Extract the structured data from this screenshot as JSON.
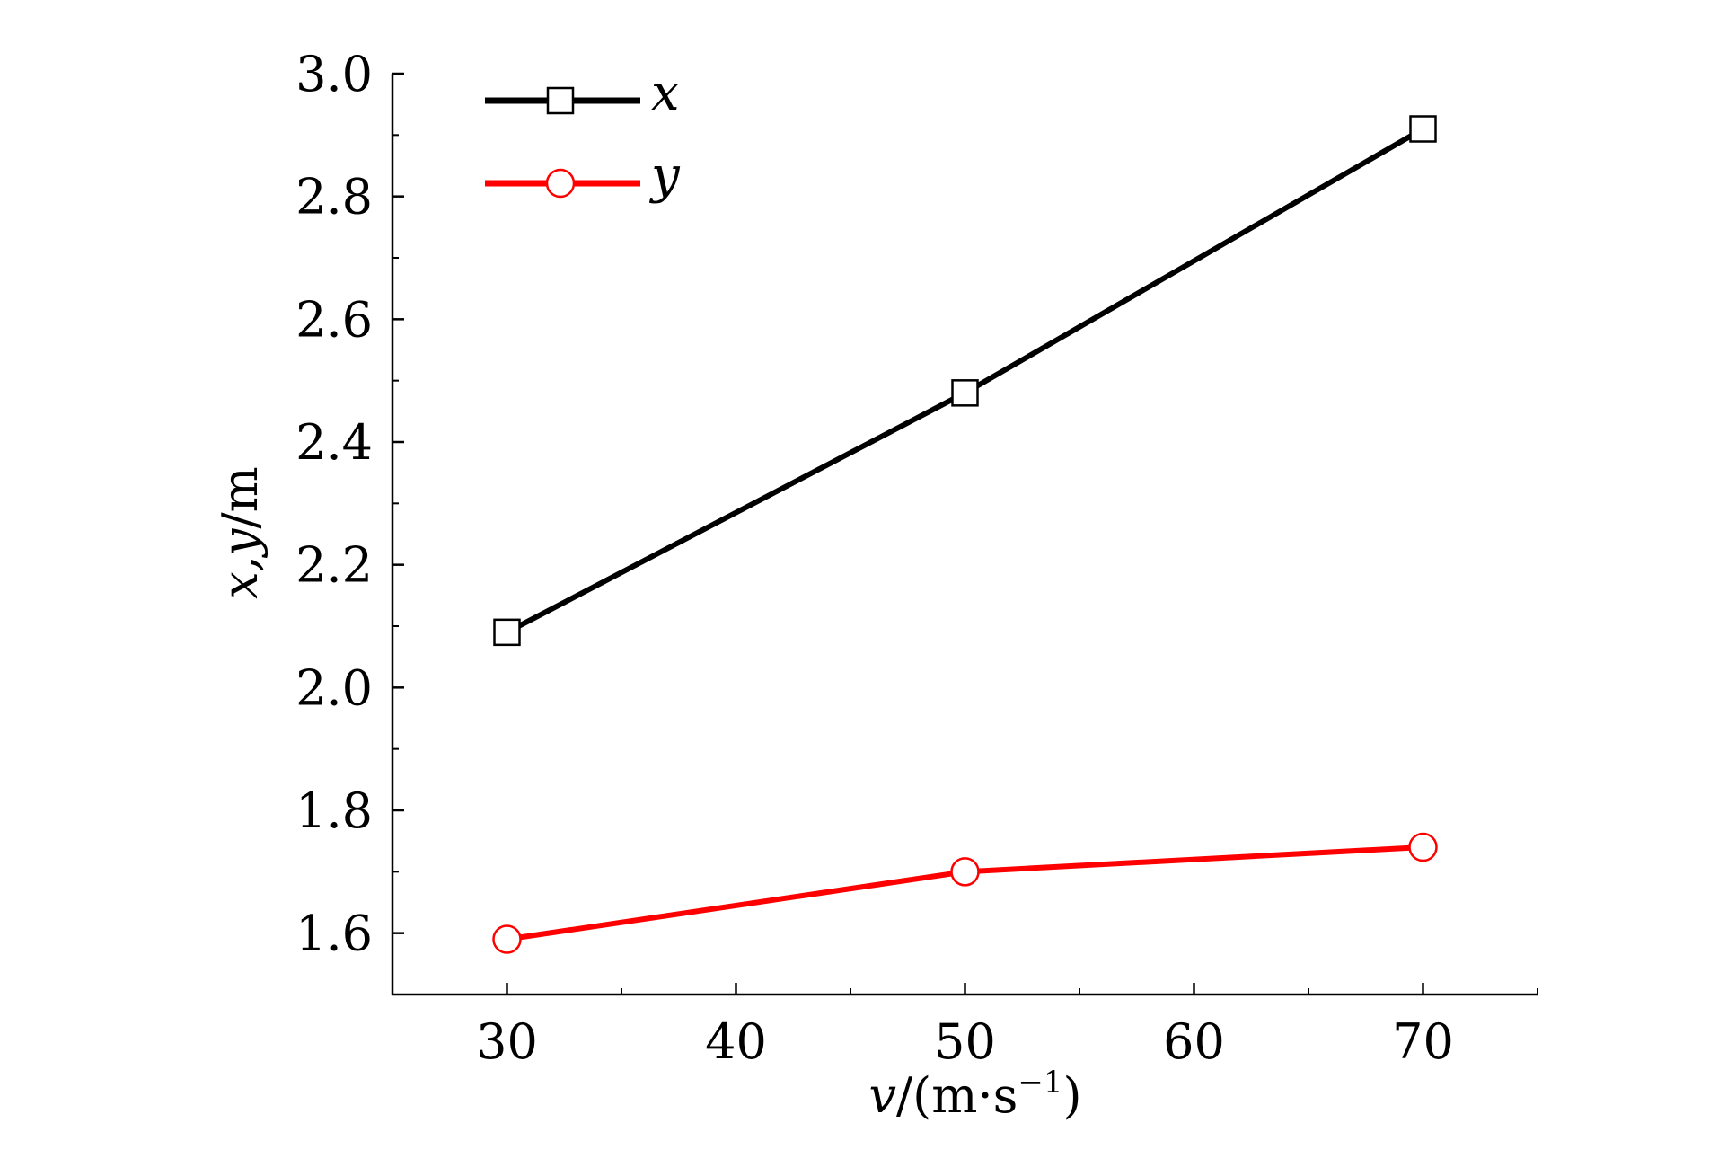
{
  "chart_data": {
    "type": "line",
    "title": "",
    "xlabel_var": "v",
    "xlabel_unit_open": "/(m·s",
    "xlabel_unit_sup": "−1",
    "xlabel_unit_close": ")",
    "ylabel_vars": "x,y",
    "ylabel_unit": "/m",
    "xlim": [
      25,
      75
    ],
    "ylim": [
      1.5,
      3.0
    ],
    "x_ticks": [
      30,
      40,
      50,
      60,
      70
    ],
    "x_tick_labels": [
      "30",
      "40",
      "50",
      "60",
      "70"
    ],
    "y_ticks": [
      1.6,
      1.8,
      2.0,
      2.2,
      2.4,
      2.6,
      2.8,
      3.0
    ],
    "y_tick_labels": [
      "1.6",
      "1.8",
      "2.0",
      "2.2",
      "2.4",
      "2.6",
      "2.8",
      "3.0"
    ],
    "grid": false,
    "legend_position": "top-left",
    "series": [
      {
        "name": "x",
        "marker": "square",
        "color": "#000000",
        "x": [
          30,
          50,
          70
        ],
        "y": [
          2.09,
          2.48,
          2.91
        ]
      },
      {
        "name": "y",
        "marker": "circle",
        "color": "#ff0000",
        "x": [
          30,
          50,
          70
        ],
        "y": [
          1.59,
          1.7,
          1.74
        ]
      }
    ]
  }
}
